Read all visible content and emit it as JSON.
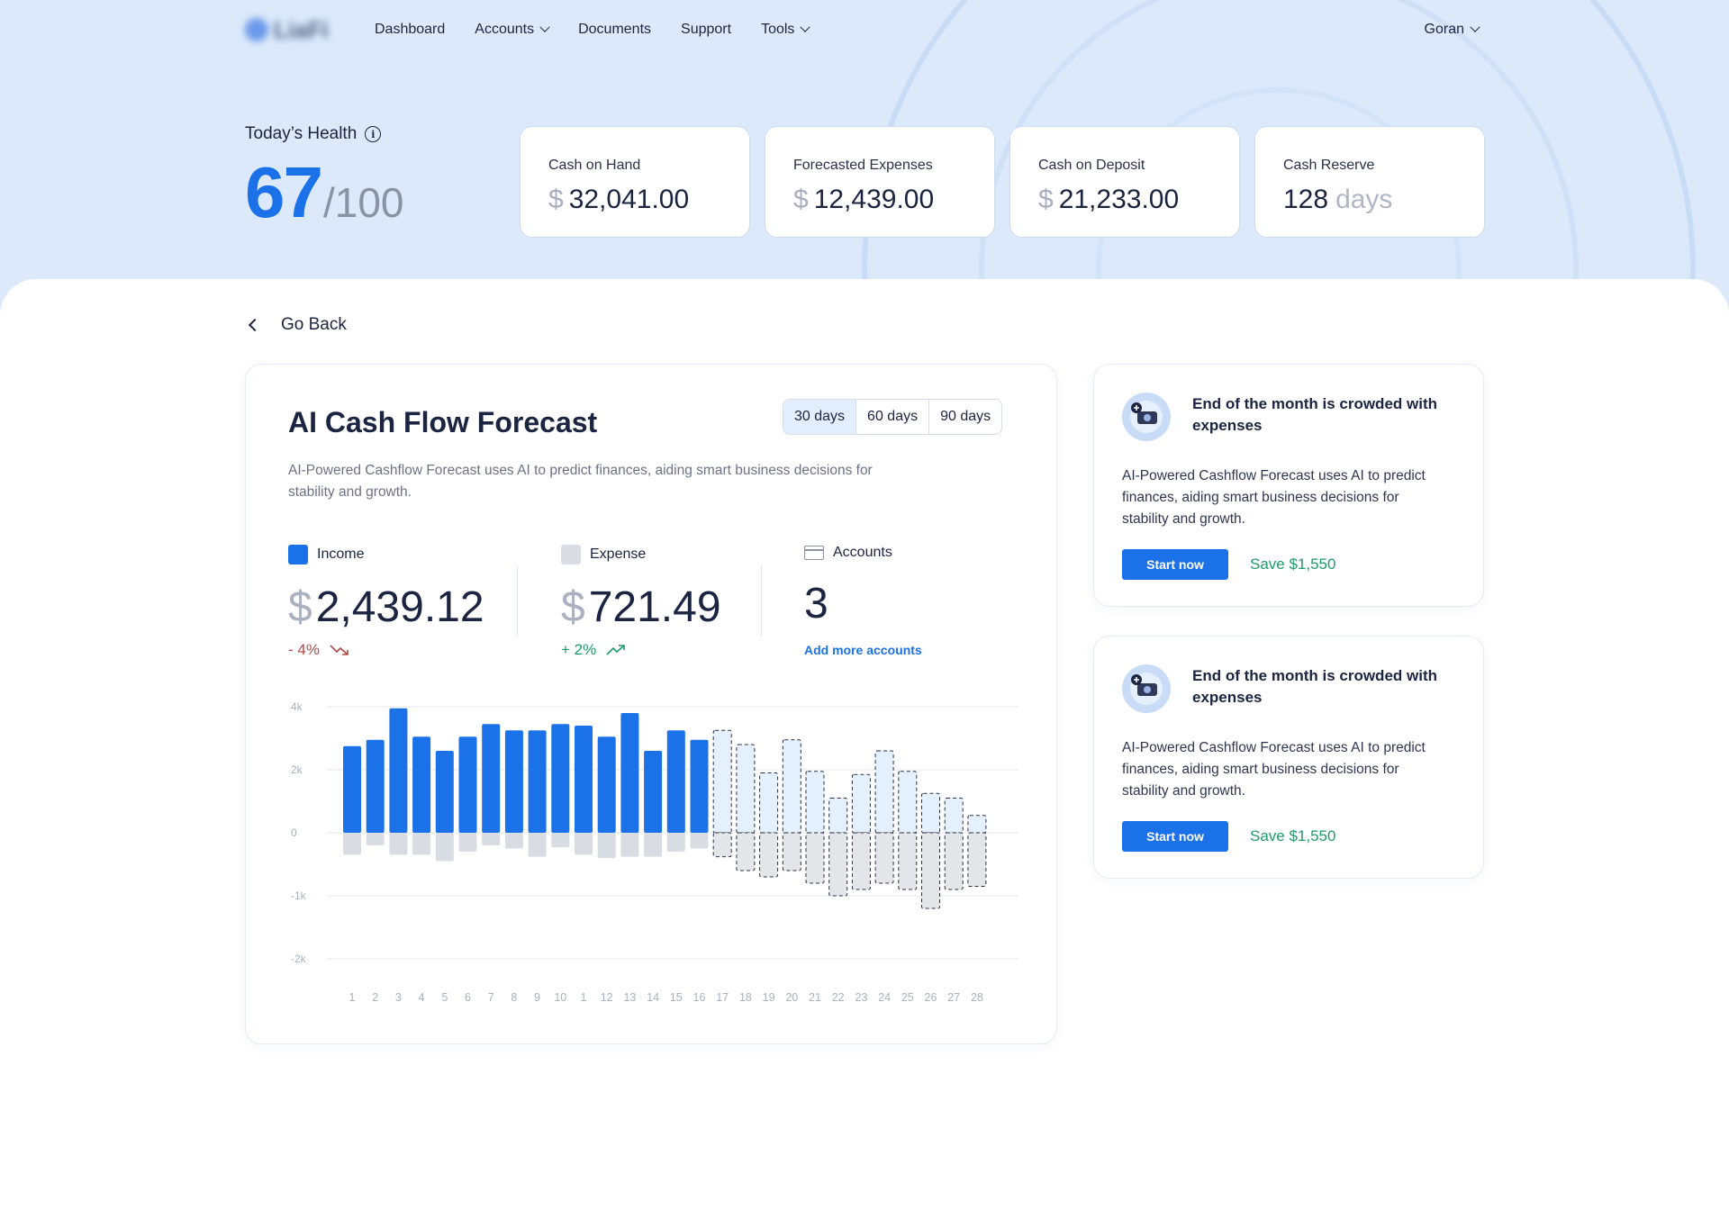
{
  "nav": {
    "logo_text": "LiaFi",
    "items": [
      {
        "label": "Dashboard",
        "dropdown": false
      },
      {
        "label": "Accounts",
        "dropdown": true
      },
      {
        "label": "Documents",
        "dropdown": false
      },
      {
        "label": "Support",
        "dropdown": false
      },
      {
        "label": "Tools",
        "dropdown": true
      }
    ],
    "user": "Goran"
  },
  "health": {
    "title": "Today’s Health",
    "score": "67",
    "max": "/100"
  },
  "kpis": [
    {
      "label": "Cash on Hand",
      "currency": "$",
      "value": "32,041.00",
      "unit": ""
    },
    {
      "label": "Forecasted Expenses",
      "currency": "$",
      "value": "12,439.00",
      "unit": ""
    },
    {
      "label": "Cash on Deposit",
      "currency": "$",
      "value": "21,233.00",
      "unit": ""
    },
    {
      "label": "Cash Reserve",
      "currency": "",
      "value": "128",
      "unit": "days"
    }
  ],
  "go_back": "Go Back",
  "forecast": {
    "title": "AI Cash Flow Forecast",
    "ranges": [
      "30 days",
      "60 days",
      "90 days"
    ],
    "selected_range": "30 days",
    "description": "AI-Powered Cashflow Forecast uses AI to predict finances, aiding smart business decisions for stability and growth.",
    "income": {
      "label": "Income",
      "currency": "$",
      "value": "2,439.12",
      "change": "- 4%"
    },
    "expense": {
      "label": "Expense",
      "currency": "$",
      "value": "721.49",
      "change": "+ 2%"
    },
    "accounts": {
      "label": "Accounts",
      "value": "3",
      "link": "Add more accounts"
    }
  },
  "colors": {
    "accent": "#1b72e8",
    "income_bar": "#1b72e8",
    "expense_bar": "#d9dce2",
    "forecast_income": "#e4f0fd",
    "positive": "#1f9b6b",
    "negative": "#b04a4a"
  },
  "chart_data": {
    "type": "bar",
    "categories": [
      "1",
      "2",
      "3",
      "4",
      "5",
      "6",
      "7",
      "8",
      "9",
      "10",
      "1",
      "12",
      "13",
      "14",
      "15",
      "16",
      "17",
      "18",
      "19",
      "20",
      "21",
      "22",
      "23",
      "24",
      "25",
      "26",
      "27",
      "28"
    ],
    "ytick_labels": [
      "4k",
      "2k",
      "0",
      "-1k",
      "-2k"
    ],
    "ylim": [
      -2000,
      4000
    ],
    "series": [
      {
        "name": "Income",
        "values": [
          2750,
          2950,
          3950,
          3050,
          2600,
          3050,
          3450,
          3250,
          3250,
          3450,
          3400,
          3050,
          3800,
          2600,
          3250,
          2950,
          3250,
          2800,
          1900,
          2950,
          1950,
          1100,
          1850,
          2600,
          1950,
          1250,
          1100,
          550
        ]
      },
      {
        "name": "Expense",
        "values": [
          -350,
          -200,
          -350,
          -350,
          -450,
          -300,
          -200,
          -250,
          -380,
          -230,
          -350,
          -400,
          -380,
          -380,
          -300,
          -250,
          -380,
          -600,
          -700,
          -600,
          -800,
          -1000,
          -900,
          -800,
          -900,
          -1200,
          -900,
          -850
        ]
      }
    ],
    "forecast_start_index": 16
  },
  "tips": [
    {
      "title": "End of the month is crowded with expenses",
      "description": "AI-Powered Cashflow Forecast uses AI to predict finances, aiding smart business decisions for stability and growth.",
      "button": "Start now",
      "save": "Save $1,550"
    },
    {
      "title": "End of the month is crowded with expenses",
      "description": "AI-Powered Cashflow Forecast uses AI to predict finances, aiding smart business decisions for stability and growth.",
      "button": "Start now",
      "save": "Save $1,550"
    }
  ]
}
